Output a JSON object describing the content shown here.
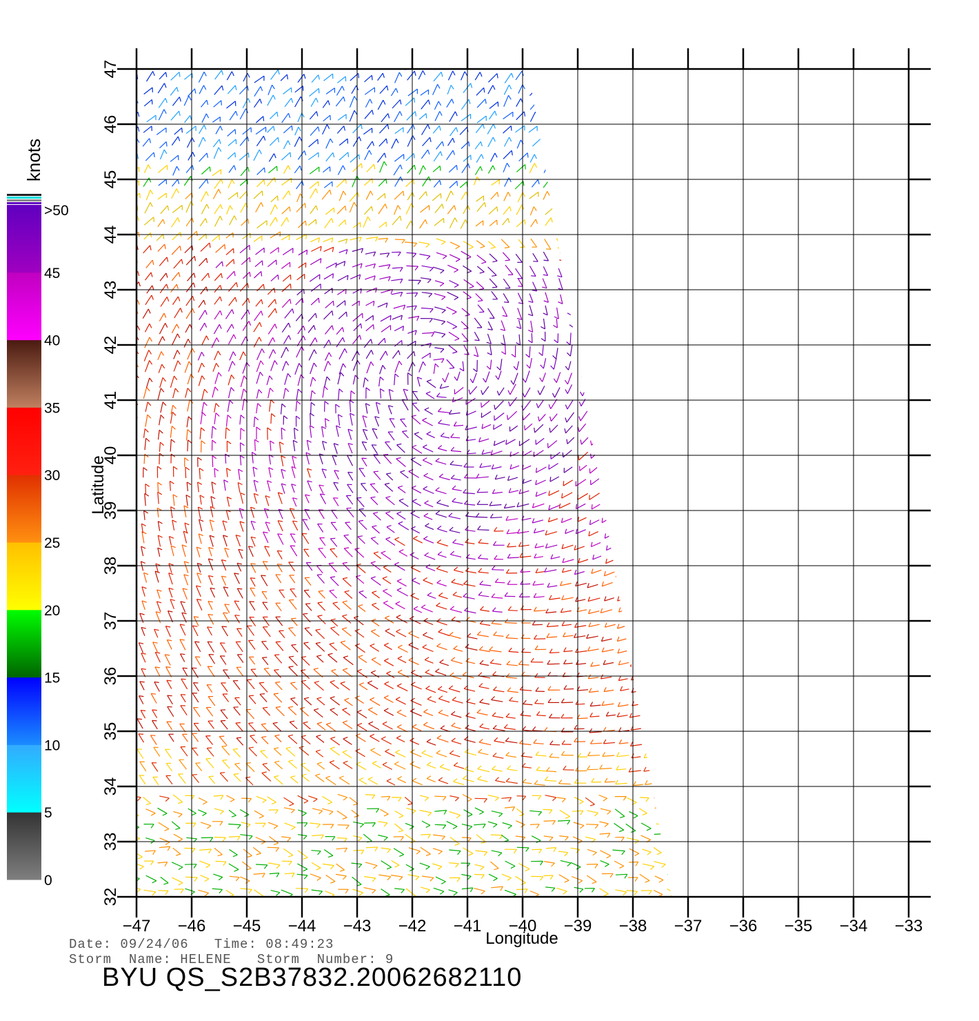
{
  "chart_data": {
    "type": "wind-vector-map",
    "xlabel": "Longitude",
    "ylabel": "Latitude",
    "xlim": [
      -47,
      -33
    ],
    "ylim": [
      32,
      47
    ],
    "x_ticks": [
      "−47",
      "−46",
      "−45",
      "−44",
      "−43",
      "−42",
      "−41",
      "−40",
      "−39",
      "−38",
      "−37",
      "−36",
      "−35",
      "−34",
      "−33"
    ],
    "y_ticks": [
      "32",
      "33",
      "34",
      "35",
      "36",
      "37",
      "38",
      "39",
      "40",
      "41",
      "42",
      "43",
      "44",
      "45",
      "46",
      "47"
    ],
    "grid": true,
    "colorbar": {
      "unit": "knots",
      "labels": [
        "0",
        "5",
        "10",
        "15",
        "20",
        "25",
        "30",
        "35",
        "40",
        "45",
        ">50"
      ],
      "bands": [
        {
          "range": [
            0,
            5
          ],
          "colors": [
            "#7f7f7f",
            "#333333"
          ]
        },
        {
          "range": [
            5,
            10
          ],
          "colors": [
            "#00ffff",
            "#33aaff"
          ]
        },
        {
          "range": [
            10,
            15
          ],
          "colors": [
            "#1a8cff",
            "#0000ff"
          ]
        },
        {
          "range": [
            15,
            20
          ],
          "colors": [
            "#006400",
            "#00ff00"
          ]
        },
        {
          "range": [
            20,
            25
          ],
          "colors": [
            "#ffff00",
            "#ffc000"
          ]
        },
        {
          "range": [
            25,
            30
          ],
          "colors": [
            "#ff9010",
            "#e03000"
          ]
        },
        {
          "range": [
            30,
            35
          ],
          "colors": [
            "#ff2010",
            "#ff0000"
          ]
        },
        {
          "range": [
            35,
            40
          ],
          "colors": [
            "#c08060",
            "#4a1a10"
          ]
        },
        {
          "range": [
            40,
            45
          ],
          "colors": [
            "#ff00ff",
            "#c000c0"
          ]
        },
        {
          "range": [
            45,
            50
          ],
          "colors": [
            "#a000c0",
            "#6000c0"
          ]
        }
      ]
    },
    "swath": {
      "top_edge_lon": -39.9,
      "top_lat": 47,
      "bottom_edge_lon": -37.3,
      "bottom_lat": 32
    },
    "storm_center_approx": {
      "lon": -41.5,
      "lat": 41.5
    }
  },
  "footer": {
    "date_line": "Date: 09/24/06   Time: 08:49:23",
    "storm_line": "Storm  Name: HELENE   Storm  Number: 9",
    "product": "BYU  QS_S2B37832.20062682110"
  }
}
